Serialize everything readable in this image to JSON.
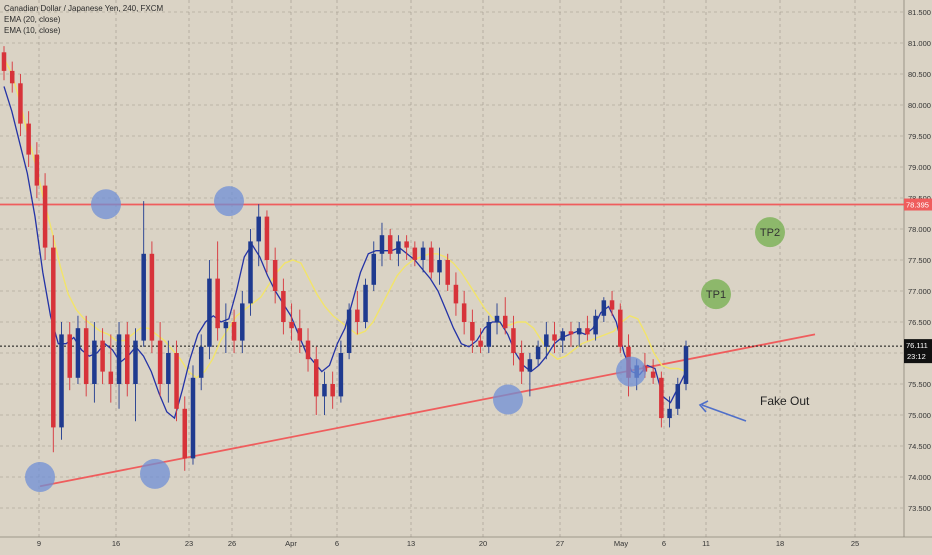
{
  "legend": {
    "title": "Canadian Dollar / Japanese Yen, 240, FXCM",
    "ema20": "EMA (20, close)",
    "ema10": "EMA (10, close)"
  },
  "colors": {
    "background": "#dad3c5",
    "grid": "#9e978a",
    "candle_up": "#1f3a8f",
    "candle_down": "#d7333a",
    "ema20": "#f2e46a",
    "ema10": "#2433a6",
    "resistance": "#ef5d5d",
    "trendline": "#ef5d5d",
    "circle_fill": "#6f8fd6",
    "tp_fill": "#7fb35a",
    "arrow": "#4f6fc9"
  },
  "chart_data": {
    "type": "candlestick",
    "symbol": "Canadian Dollar / Japanese Yen, 240, FXCM",
    "ylim": [
      73.3,
      81.6
    ],
    "price_ticks": [
      "81.500",
      "81.000",
      "80.500",
      "80.000",
      "79.500",
      "79.000",
      "78.500",
      "78.000",
      "77.500",
      "77.000",
      "76.500",
      "76.000",
      "75.500",
      "75.000",
      "74.500",
      "74.000",
      "73.500"
    ],
    "time_ticks": [
      "9",
      "16",
      "23",
      "26",
      "Apr",
      "6",
      "13",
      "20",
      "27",
      "May",
      "6",
      "11",
      "18",
      "25"
    ],
    "resistance_level": 78.395,
    "resistance_label": "78.395",
    "last_price": 76.111,
    "last_price_label": "76.111",
    "countdown": "23:12",
    "trendline": {
      "from_price": 73.85,
      "to_price": 76.3
    },
    "targets": [
      {
        "label": "TP1",
        "price": 76.95
      },
      {
        "label": "TP2",
        "price": 77.95
      }
    ],
    "annotation": "Fake Out",
    "ema20_points": [
      80.75,
      80.5,
      80.05,
      79.5,
      79.0,
      78.45,
      77.95,
      77.4,
      76.95,
      76.7,
      76.55,
      76.45,
      76.35,
      76.3,
      76.2,
      76.2,
      76.3,
      76.4,
      76.4,
      76.3,
      76.2,
      76.05,
      75.9,
      75.7,
      75.6,
      75.7,
      75.9,
      76.2,
      76.4,
      76.6,
      76.7,
      76.8,
      76.9,
      77.1,
      77.3,
      77.45,
      77.5,
      77.45,
      77.2,
      76.95,
      76.75,
      76.6,
      76.5,
      76.4,
      76.3,
      76.35,
      76.5,
      76.75,
      77.0,
      77.25,
      77.4,
      77.5,
      77.55,
      77.6,
      77.6,
      77.55,
      77.45,
      77.3,
      77.1,
      76.9,
      76.7,
      76.55,
      76.45,
      76.45,
      76.5,
      76.5,
      76.4,
      76.2,
      76.0,
      75.9,
      75.95,
      76.05,
      76.15,
      76.2,
      76.25,
      76.3,
      76.35,
      76.5,
      76.6,
      76.55,
      76.3,
      76.0,
      75.8,
      75.75,
      75.75,
      75.7
    ],
    "ema10_points": [
      80.3,
      79.9,
      79.4,
      78.9,
      78.2,
      77.3,
      76.6,
      76.15,
      76.15,
      76.25,
      76.05,
      75.95,
      76.0,
      76.15,
      76.05,
      75.85,
      75.95,
      76.1,
      75.95,
      75.7,
      75.35,
      75.05,
      74.95,
      75.4,
      75.9,
      76.3,
      76.5,
      76.6,
      76.5,
      76.55,
      77.0,
      77.55,
      77.75,
      77.55,
      77.25,
      77.0,
      76.8,
      76.6,
      76.3,
      76.0,
      75.85,
      75.7,
      75.8,
      76.15,
      76.4,
      76.85,
      77.3,
      77.6,
      77.65,
      77.65,
      77.65,
      77.7,
      77.6,
      77.5,
      77.35,
      77.2,
      77.0,
      76.7,
      76.4,
      76.15,
      76.1,
      76.2,
      76.4,
      76.5,
      76.5,
      76.3,
      76.0,
      75.8,
      75.7,
      75.8,
      75.95,
      76.15,
      76.25,
      76.3,
      76.35,
      76.3,
      76.4,
      76.65,
      76.75,
      76.5,
      76.0,
      75.7,
      75.65,
      75.8,
      75.75,
      75.3,
      75.2,
      75.45,
      75.7
    ],
    "candles": [
      [
        80.85,
        80.95,
        80.4,
        80.55
      ],
      [
        80.55,
        80.7,
        80.2,
        80.35
      ],
      [
        80.35,
        80.5,
        79.5,
        79.7
      ],
      [
        79.7,
        79.9,
        79.0,
        79.2
      ],
      [
        79.2,
        79.4,
        78.5,
        78.7
      ],
      [
        78.7,
        78.9,
        77.5,
        77.7
      ],
      [
        77.7,
        77.9,
        74.4,
        74.8
      ],
      [
        74.8,
        76.5,
        74.6,
        76.3
      ],
      [
        76.3,
        76.5,
        75.4,
        75.6
      ],
      [
        75.6,
        76.6,
        75.5,
        76.4
      ],
      [
        76.4,
        76.6,
        75.3,
        75.5
      ],
      [
        75.5,
        76.5,
        75.2,
        76.2
      ],
      [
        76.2,
        76.4,
        75.5,
        75.7
      ],
      [
        75.7,
        76.3,
        75.2,
        75.5
      ],
      [
        75.5,
        76.5,
        75.1,
        76.3
      ],
      [
        76.3,
        76.5,
        75.3,
        75.5
      ],
      [
        75.5,
        76.4,
        74.9,
        76.2
      ],
      [
        76.2,
        78.45,
        76.1,
        77.6
      ],
      [
        77.6,
        77.8,
        76.0,
        76.2
      ],
      [
        76.2,
        76.5,
        75.3,
        75.5
      ],
      [
        75.5,
        76.2,
        75.2,
        76.0
      ],
      [
        76.0,
        76.2,
        74.9,
        75.1
      ],
      [
        75.1,
        75.3,
        74.1,
        74.3
      ],
      [
        74.3,
        75.8,
        74.2,
        75.6
      ],
      [
        75.6,
        76.3,
        75.4,
        76.1
      ],
      [
        76.1,
        77.5,
        75.9,
        77.2
      ],
      [
        77.2,
        77.8,
        76.2,
        76.4
      ],
      [
        76.4,
        76.8,
        76.0,
        76.5
      ],
      [
        76.5,
        76.7,
        76.0,
        76.2
      ],
      [
        76.2,
        77.0,
        76.0,
        76.8
      ],
      [
        76.8,
        78.0,
        76.6,
        77.8
      ],
      [
        77.8,
        78.4,
        77.4,
        78.2
      ],
      [
        78.2,
        78.3,
        77.3,
        77.5
      ],
      [
        77.5,
        77.7,
        76.8,
        77.0
      ],
      [
        77.0,
        77.2,
        76.3,
        76.5
      ],
      [
        76.5,
        76.8,
        76.2,
        76.4
      ],
      [
        76.4,
        76.7,
        76.0,
        76.2
      ],
      [
        76.2,
        76.4,
        75.7,
        75.9
      ],
      [
        75.9,
        76.1,
        75.0,
        75.3
      ],
      [
        75.3,
        75.7,
        75.0,
        75.5
      ],
      [
        75.5,
        75.7,
        75.1,
        75.3
      ],
      [
        75.3,
        76.2,
        75.2,
        76.0
      ],
      [
        76.0,
        76.8,
        75.9,
        76.7
      ],
      [
        76.7,
        77.0,
        76.3,
        76.5
      ],
      [
        76.5,
        77.2,
        76.4,
        77.1
      ],
      [
        77.1,
        77.8,
        77.0,
        77.6
      ],
      [
        77.6,
        78.1,
        77.4,
        77.9
      ],
      [
        77.9,
        78.0,
        77.5,
        77.6
      ],
      [
        77.6,
        77.9,
        77.4,
        77.8
      ],
      [
        77.8,
        77.9,
        77.5,
        77.7
      ],
      [
        77.7,
        77.8,
        77.4,
        77.5
      ],
      [
        77.5,
        77.8,
        77.3,
        77.7
      ],
      [
        77.7,
        77.8,
        77.2,
        77.3
      ],
      [
        77.3,
        77.7,
        77.1,
        77.5
      ],
      [
        77.5,
        77.6,
        77.0,
        77.1
      ],
      [
        77.1,
        77.3,
        76.6,
        76.8
      ],
      [
        76.8,
        77.0,
        76.3,
        76.5
      ],
      [
        76.5,
        76.7,
        76.0,
        76.2
      ],
      [
        76.2,
        76.4,
        76.0,
        76.1
      ],
      [
        76.1,
        76.6,
        76.0,
        76.5
      ],
      [
        76.5,
        76.8,
        76.3,
        76.6
      ],
      [
        76.6,
        76.9,
        76.3,
        76.4
      ],
      [
        76.4,
        76.6,
        75.8,
        76.0
      ],
      [
        76.0,
        76.2,
        75.5,
        75.7
      ],
      [
        75.7,
        76.0,
        75.3,
        75.9
      ],
      [
        75.9,
        76.2,
        75.8,
        76.1
      ],
      [
        76.1,
        76.5,
        75.9,
        76.3
      ],
      [
        76.3,
        76.5,
        76.0,
        76.2
      ],
      [
        76.2,
        76.4,
        76.0,
        76.35
      ],
      [
        76.35,
        76.5,
        76.1,
        76.3
      ],
      [
        76.3,
        76.5,
        76.1,
        76.4
      ],
      [
        76.4,
        76.6,
        76.2,
        76.3
      ],
      [
        76.3,
        76.7,
        76.2,
        76.6
      ],
      [
        76.6,
        76.9,
        76.5,
        76.85
      ],
      [
        76.85,
        77.0,
        76.6,
        76.7
      ],
      [
        76.7,
        76.8,
        76.0,
        76.1
      ],
      [
        76.1,
        76.3,
        75.3,
        75.6
      ],
      [
        75.6,
        75.9,
        75.4,
        75.8
      ],
      [
        75.8,
        76.0,
        75.6,
        75.7
      ],
      [
        75.7,
        75.9,
        75.5,
        75.6
      ],
      [
        75.6,
        75.7,
        74.8,
        74.95
      ],
      [
        74.95,
        75.3,
        74.8,
        75.1
      ],
      [
        75.1,
        75.6,
        75.0,
        75.5
      ],
      [
        75.5,
        76.2,
        75.4,
        76.111
      ]
    ]
  }
}
